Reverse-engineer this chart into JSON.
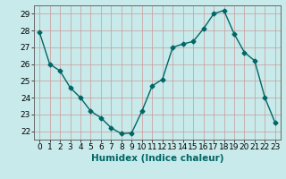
{
  "x": [
    0,
    1,
    2,
    3,
    4,
    5,
    6,
    7,
    8,
    9,
    10,
    11,
    12,
    13,
    14,
    15,
    16,
    17,
    18,
    19,
    20,
    21,
    22,
    23
  ],
  "y": [
    27.9,
    26.0,
    25.6,
    24.6,
    24.0,
    23.2,
    22.8,
    22.2,
    21.85,
    21.9,
    23.2,
    24.7,
    25.1,
    27.0,
    27.2,
    27.35,
    28.1,
    29.0,
    29.2,
    27.8,
    26.7,
    26.2,
    24.0,
    22.5
  ],
  "line_color": "#006666",
  "marker": "D",
  "markersize": 2.5,
  "linewidth": 1.0,
  "xlabel": "Humidex (Indice chaleur)",
  "xlabel_fontsize": 7.5,
  "ylim": [
    21.5,
    29.5
  ],
  "xlim": [
    -0.5,
    23.5
  ],
  "yticks": [
    22,
    23,
    24,
    25,
    26,
    27,
    28,
    29
  ],
  "xtick_labels": [
    "0",
    "1",
    "2",
    "3",
    "4",
    "5",
    "6",
    "7",
    "8",
    "9",
    "10",
    "11",
    "12",
    "13",
    "14",
    "15",
    "16",
    "17",
    "18",
    "19",
    "20",
    "21",
    "22",
    "23"
  ],
  "grid_color": "#cc9999",
  "bg_color": "#c8eaea",
  "tick_fontsize": 6.5,
  "tick_color": "#000000",
  "spine_color": "#666666",
  "xlabel_color": "#006666",
  "xlabel_bold": true
}
